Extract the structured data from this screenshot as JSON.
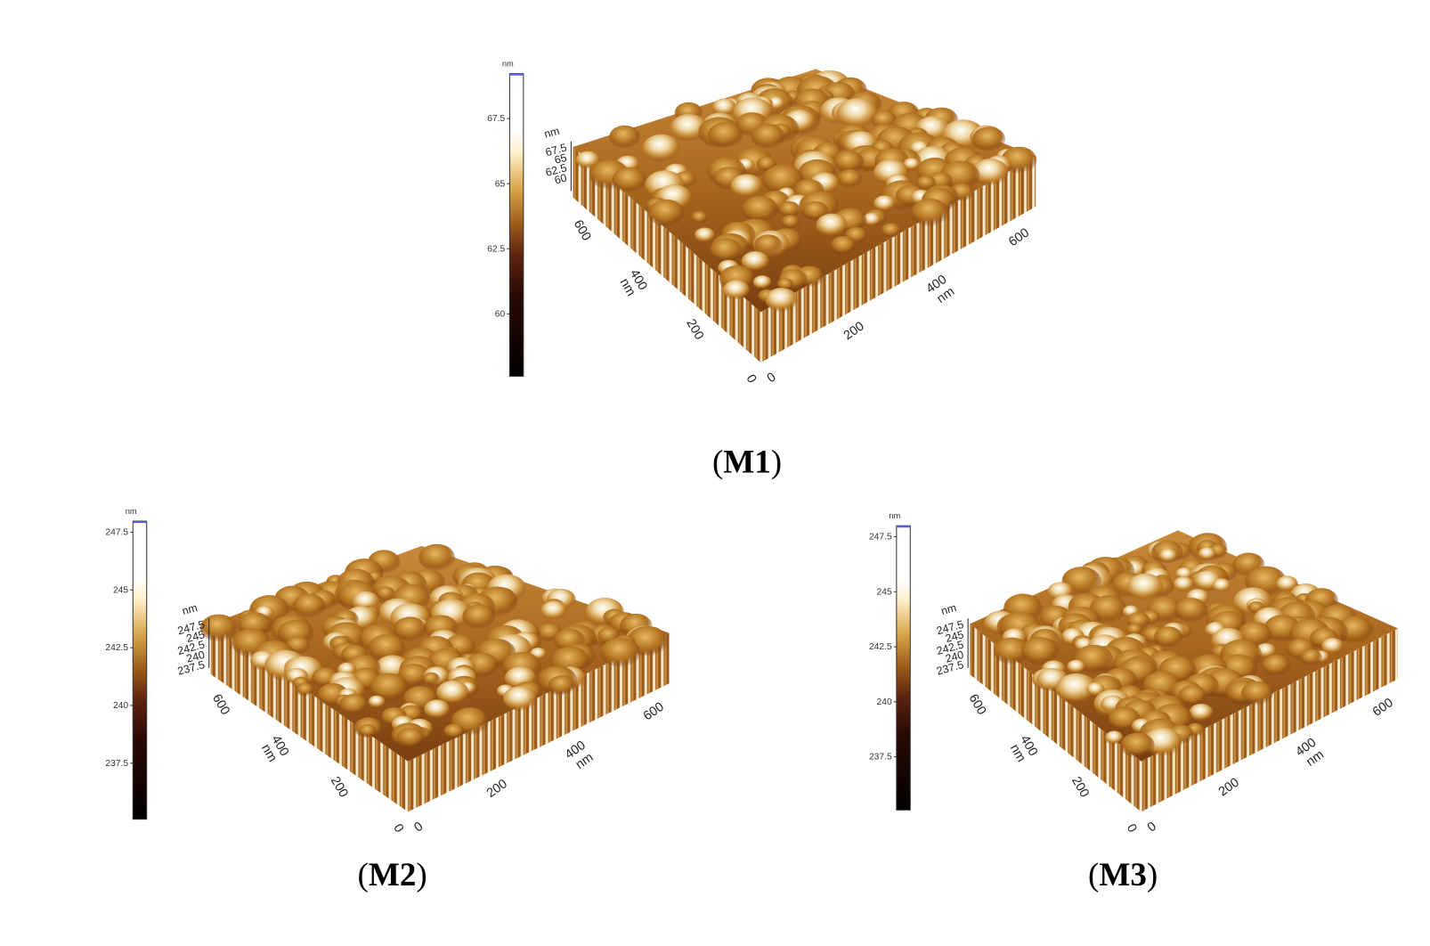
{
  "panels": [
    {
      "caption": [
        "(",
        "M1",
        ")"
      ],
      "colorbar": {
        "unit": "nm",
        "ticks": [
          67.5,
          65,
          62.5,
          60
        ]
      },
      "z_axis": {
        "unit": "nm",
        "ticks": [
          67.5,
          65,
          62.5,
          60
        ]
      },
      "x_axis": {
        "unit": "nm",
        "ticks": [
          0,
          200,
          400,
          600
        ]
      },
      "y_axis": {
        "unit": "nm",
        "ticks": [
          0,
          200,
          400,
          600
        ]
      }
    },
    {
      "caption": [
        "(",
        "M2",
        ")"
      ],
      "colorbar": {
        "unit": "nm",
        "ticks": [
          247.5,
          245,
          242.5,
          240,
          237.5
        ]
      },
      "z_axis": {
        "unit": "nm",
        "ticks": [
          247.5,
          245,
          242.5,
          240,
          237.5
        ]
      },
      "x_axis": {
        "unit": "nm",
        "ticks": [
          0,
          200,
          400,
          600
        ]
      },
      "y_axis": {
        "unit": "nm",
        "ticks": [
          0,
          200,
          400,
          600
        ]
      }
    },
    {
      "caption": [
        "(",
        "M3",
        ")"
      ],
      "colorbar": {
        "unit": "nm",
        "ticks": [
          247.5,
          245,
          242.5,
          240,
          237.5
        ]
      },
      "z_axis": {
        "unit": "nm",
        "ticks": [
          247.5,
          245,
          242.5,
          240,
          237.5
        ]
      },
      "x_axis": {
        "unit": "nm",
        "ticks": [
          0,
          200,
          400,
          600
        ]
      },
      "y_axis": {
        "unit": "nm",
        "ticks": [
          0,
          200,
          400,
          600
        ]
      }
    }
  ]
}
